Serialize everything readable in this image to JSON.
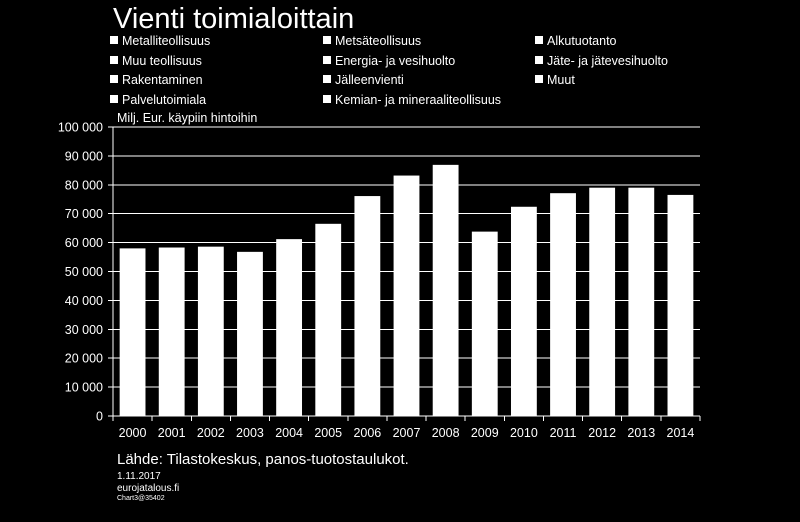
{
  "title": "Vienti toimialoittain",
  "legend": [
    "Metalliteollisuus",
    "Metsäteollisuus",
    "Alkutuotanto",
    "Muu teollisuus",
    "Energia- ja vesihuolto",
    "Jäte- ja jätevesihuolto",
    "Rakentaminen",
    "Jälleenvienti",
    "Muut",
    "Palvelutoimiala",
    "Kemian- ja mineraaliteollisuus"
  ],
  "footer": {
    "source": "Lähde: Tilastokeskus, panos-tuotostaulukot.",
    "date": "1.11.2017",
    "site": "eurojatalous.fi",
    "chart_id": "Chart3@35402"
  },
  "colors": {
    "background": "#000000",
    "bars": "#ffffff",
    "text": "#ffffff"
  },
  "chart_data": {
    "type": "bar",
    "title": "Vienti toimialoittain",
    "ylabel": "Milj. Eur. käypiin hintoihin",
    "xlabel": "",
    "ylim": [
      0,
      100000
    ],
    "yticks": [
      0,
      10000,
      20000,
      30000,
      40000,
      50000,
      60000,
      70000,
      80000,
      90000,
      100000
    ],
    "ytick_labels": [
      "0",
      "10 000",
      "20 000",
      "30 000",
      "40 000",
      "50 000",
      "60 000",
      "70 000",
      "80 000",
      "90 000",
      "100 000"
    ],
    "grid": true,
    "categories": [
      "2000",
      "2001",
      "2002",
      "2003",
      "2004",
      "2005",
      "2006",
      "2007",
      "2008",
      "2009",
      "2010",
      "2011",
      "2012",
      "2013",
      "2014"
    ],
    "values": [
      58000,
      58300,
      58600,
      56800,
      61200,
      66500,
      76100,
      83200,
      86900,
      63800,
      72400,
      77100,
      79000,
      79000,
      76500
    ]
  }
}
